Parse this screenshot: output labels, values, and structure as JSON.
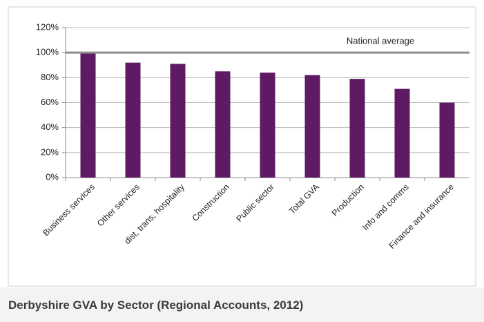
{
  "chart_data": {
    "type": "bar",
    "caption": "Derbyshire GVA by Sector (Regional Accounts, 2012)",
    "categories": [
      "Business services",
      "Other services",
      "dist, trans, hospitality",
      "Construction",
      "Public sector",
      "Total GVA",
      "Production",
      "Info and comms",
      "Finance and insurance"
    ],
    "values": [
      100,
      92,
      91,
      85,
      84,
      82,
      79,
      71,
      60
    ],
    "color": "#5e1a63",
    "ylim": [
      0,
      120
    ],
    "yticks": [
      {
        "value": 0,
        "label": "0%"
      },
      {
        "value": 20,
        "label": "20%"
      },
      {
        "value": 40,
        "label": "40%"
      },
      {
        "value": 60,
        "label": "60%"
      },
      {
        "value": 80,
        "label": "80%"
      },
      {
        "value": 100,
        "label": "100%"
      },
      {
        "value": 120,
        "label": "120%"
      }
    ],
    "grid": true,
    "reference_line": {
      "value": 100,
      "label": "National average",
      "color": "#8c8c8c"
    }
  }
}
